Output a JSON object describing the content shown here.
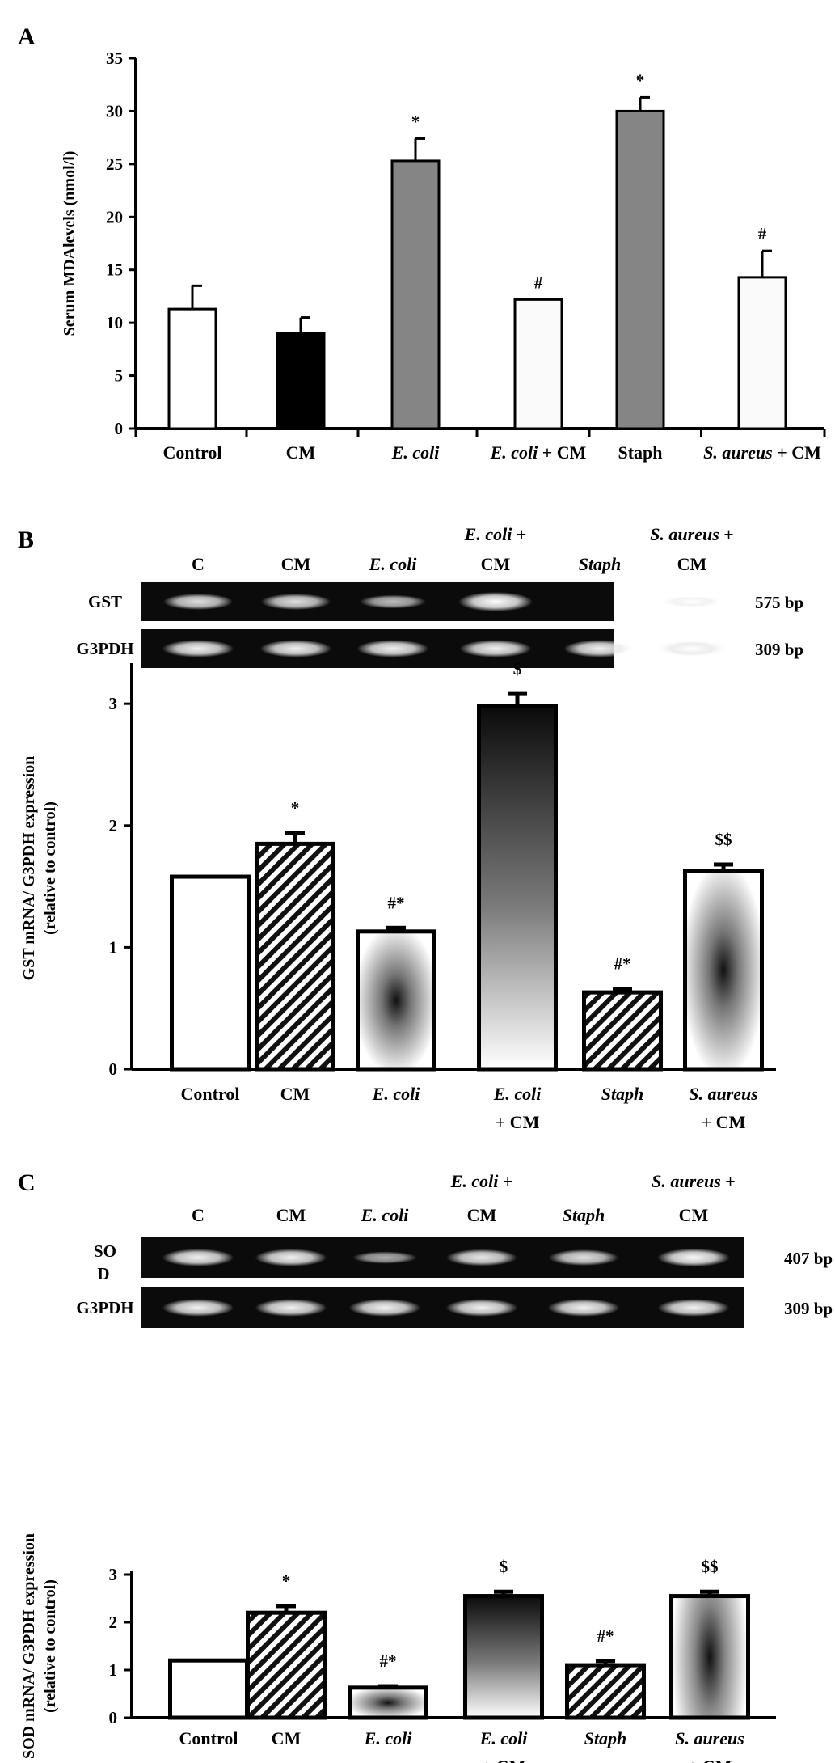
{
  "panels": {
    "A": {
      "label": "A",
      "chart_data": {
        "type": "bar",
        "title": "",
        "xlabel": "",
        "ylabel": "Serum MDAlevels (nmol/l)",
        "ylim": [
          0,
          35
        ],
        "yticks": [
          0,
          5,
          10,
          15,
          20,
          25,
          30,
          35
        ],
        "categories": [
          {
            "parts": [
              {
                "t": "Control",
                "i": false
              }
            ]
          },
          {
            "parts": [
              {
                "t": "CM",
                "i": false
              }
            ]
          },
          {
            "parts": [
              {
                "t": "E. coli",
                "i": true
              }
            ]
          },
          {
            "parts": [
              {
                "t": "E. coli",
                "i": true
              },
              {
                "t": " + CM",
                "i": false
              }
            ]
          },
          {
            "parts": [
              {
                "t": "Staph",
                "i": false
              }
            ]
          },
          {
            "parts": [
              {
                "t": "S. aureus",
                "i": true
              },
              {
                "t": " + CM",
                "i": false
              }
            ]
          }
        ],
        "values": [
          11.3,
          9.0,
          25.3,
          12.2,
          30.0,
          14.3
        ],
        "errors": [
          2.2,
          1.5,
          2.1,
          0.0,
          1.3,
          2.5
        ],
        "annotations": [
          "",
          "",
          "*",
          "#",
          "*",
          "#"
        ],
        "fills": [
          "white",
          "black",
          "gray",
          "light",
          "gray",
          "light"
        ]
      }
    },
    "B": {
      "label": "B",
      "gel": {
        "lanes": [
          {
            "parts": [
              {
                "t": "C",
                "i": false
              }
            ]
          },
          {
            "parts": [
              {
                "t": "CM",
                "i": false
              }
            ]
          },
          {
            "parts": [
              {
                "t": "E. coli",
                "i": true
              }
            ]
          },
          {
            "parts": [
              {
                "t": "E. coli",
                "i": true
              },
              {
                "t": " +",
                "i": false
              }
            ],
            "line2": "CM"
          },
          {
            "parts": [
              {
                "t": "Staph",
                "i": true
              }
            ]
          },
          {
            "parts": [
              {
                "t": "S. aureus",
                "i": true
              },
              {
                "t": " +",
                "i": false
              }
            ],
            "line2": "CM"
          }
        ],
        "rows": [
          {
            "name": "GST",
            "size": "575 bp",
            "intensities": [
              0.75,
              0.75,
              0.55,
              1.0,
              0.0,
              0.45
            ]
          },
          {
            "name": "G3PDH",
            "size": "309 bp",
            "intensities": [
              0.85,
              0.85,
              0.85,
              0.85,
              0.85,
              0.85
            ]
          }
        ]
      },
      "chart_data": {
        "type": "bar",
        "title": "",
        "xlabel": "",
        "ylabel": [
          "GST mRNA/ G3PDH expression",
          "(relative to control)"
        ],
        "ylim": [
          0,
          3.3
        ],
        "yticks": [
          0,
          1,
          2,
          3
        ],
        "categories": [
          {
            "parts": [
              {
                "t": "Control",
                "i": false
              }
            ]
          },
          {
            "parts": [
              {
                "t": "CM",
                "i": false
              }
            ]
          },
          {
            "parts": [
              {
                "t": "E. coli",
                "i": true
              }
            ]
          },
          {
            "parts": [
              {
                "t": "E. coli",
                "i": true
              }
            ],
            "line2": "+ CM"
          },
          {
            "parts": [
              {
                "t": "Staph",
                "i": true
              }
            ]
          },
          {
            "parts": [
              {
                "t": "S. aureus",
                "i": true
              }
            ],
            "line2": "+ CM"
          }
        ],
        "values": [
          1.58,
          1.85,
          1.13,
          2.98,
          0.63,
          1.63
        ],
        "errors": [
          0.0,
          0.09,
          0.03,
          0.1,
          0.03,
          0.05
        ],
        "annotations": [
          "",
          "*",
          "#*",
          "$",
          "#*",
          "$$"
        ],
        "fills": [
          "white",
          "hatch",
          "radial",
          "vgrad",
          "hatch",
          "radial"
        ]
      }
    },
    "C": {
      "label": "C",
      "gel": {
        "lanes": [
          {
            "parts": [
              {
                "t": "C",
                "i": false
              }
            ]
          },
          {
            "parts": [
              {
                "t": "CM",
                "i": false
              }
            ]
          },
          {
            "parts": [
              {
                "t": "E. coli",
                "i": true
              }
            ]
          },
          {
            "parts": [
              {
                "t": "E. coli",
                "i": true
              },
              {
                "t": " +",
                "i": false
              }
            ],
            "line2": "CM"
          },
          {
            "parts": [
              {
                "t": "Staph",
                "i": true
              }
            ]
          },
          {
            "parts": [
              {
                "t": "S. aureus",
                "i": true
              },
              {
                "t": " +",
                "i": false
              }
            ],
            "line2": "CM"
          }
        ],
        "rows": [
          {
            "name": "SO",
            "name2": "D",
            "size": "407 bp",
            "intensities": [
              0.85,
              0.85,
              0.45,
              0.8,
              0.75,
              0.9
            ]
          },
          {
            "name": "G3PDH",
            "size": "309 bp",
            "intensities": [
              0.85,
              0.85,
              0.85,
              0.85,
              0.85,
              0.85
            ]
          }
        ]
      },
      "chart_data": {
        "type": "bar",
        "title": "",
        "xlabel": "",
        "ylabel": [
          "SOD mRNA/ G3PDH expression",
          "(relative to control)"
        ],
        "ylim": [
          0,
          3
        ],
        "yticks": [
          0,
          1,
          2,
          3
        ],
        "categories": [
          {
            "parts": [
              {
                "t": "Control",
                "i": false
              }
            ]
          },
          {
            "parts": [
              {
                "t": "CM",
                "i": false
              }
            ]
          },
          {
            "parts": [
              {
                "t": "E. coli",
                "i": true
              }
            ]
          },
          {
            "parts": [
              {
                "t": "E. coli",
                "i": true
              }
            ],
            "line2": "+ CM"
          },
          {
            "parts": [
              {
                "t": "Staph",
                "i": true
              }
            ]
          },
          {
            "parts": [
              {
                "t": "S. aureus",
                "i": true
              }
            ],
            "line2": "+ CM"
          }
        ],
        "values": [
          1.2,
          2.2,
          0.63,
          2.55,
          1.1,
          2.55
        ],
        "errors": [
          0.0,
          0.14,
          0.03,
          0.09,
          0.09,
          0.09
        ],
        "annotations": [
          "",
          "*",
          "#*",
          "$",
          "#*",
          "$$"
        ],
        "fills": [
          "white",
          "hatch",
          "radial",
          "vgrad",
          "hatch",
          "vradial"
        ]
      }
    }
  }
}
